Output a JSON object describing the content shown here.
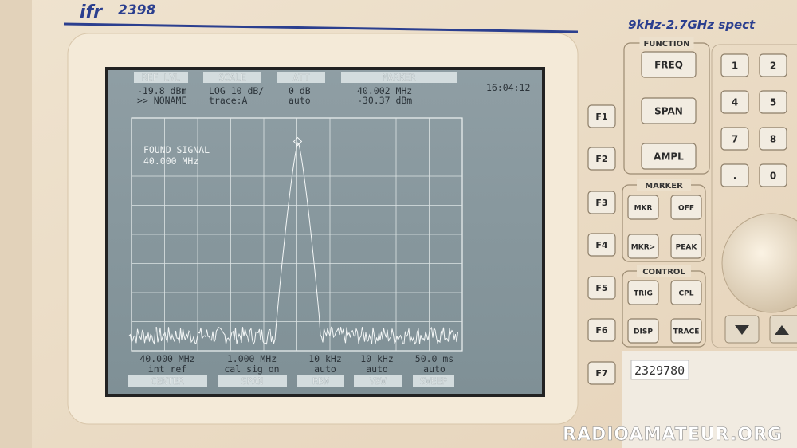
{
  "brand": {
    "logo": "ifr",
    "model": "2398"
  },
  "front_panel_label": "9kHz-2.7GHz spect",
  "screen": {
    "header_tabs": [
      "REF LVL",
      "SCALE",
      "ATT",
      "MARKER"
    ],
    "header_values": [
      [
        "-19.8 dBm",
        ">> NONAME"
      ],
      [
        "LOG 10 dB/",
        "trace:A"
      ],
      [
        "0 dB",
        "auto"
      ],
      [
        "40.002 MHz",
        "-30.37 dBm"
      ]
    ],
    "time": "16:04:12",
    "annotation": [
      "FOUND SIGNAL",
      "40.000 MHz"
    ],
    "footer_values": [
      [
        "40.000 MHz",
        "int ref"
      ],
      [
        "1.000 MHz",
        "cal sig on"
      ],
      [
        "10 kHz",
        "auto"
      ],
      [
        "10 kHz",
        "auto"
      ],
      [
        "50.0 ms",
        "auto"
      ]
    ],
    "footer_tabs": [
      "CENTER",
      "SPAN",
      "RBW",
      "VBW",
      "SWEEP"
    ]
  },
  "softkeys": [
    "F1",
    "F2",
    "F3",
    "F4",
    "F5",
    "F6",
    "F7"
  ],
  "function": {
    "title": "FUNCTION",
    "keys": [
      "FREQ",
      "SPAN",
      "AMPL"
    ]
  },
  "marker": {
    "title": "MARKER",
    "keys": [
      "MKR",
      "OFF",
      "MKR>",
      "PEAK"
    ]
  },
  "control": {
    "title": "CONTROL",
    "keys": [
      "TRIG",
      "CPL",
      "DISP",
      "TRACE"
    ]
  },
  "keypad": [
    "1",
    "2",
    "4",
    "5",
    "7",
    "8",
    ".",
    "0"
  ],
  "sticker": "2329780",
  "watermark": "RADIOAMATEUR.ORG"
}
